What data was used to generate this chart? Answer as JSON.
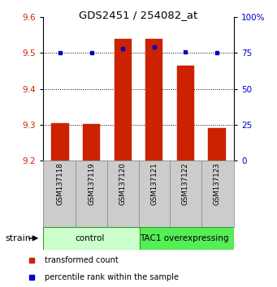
{
  "title": "GDS2451 / 254082_at",
  "samples": [
    "GSM137118",
    "GSM137119",
    "GSM137120",
    "GSM137121",
    "GSM137122",
    "GSM137123"
  ],
  "red_values": [
    9.305,
    9.302,
    9.54,
    9.54,
    9.465,
    9.29
  ],
  "blue_values": [
    75,
    75,
    78,
    79,
    76,
    75
  ],
  "ylim_left": [
    9.2,
    9.6
  ],
  "ylim_right": [
    0,
    100
  ],
  "yticks_left": [
    9.2,
    9.3,
    9.4,
    9.5,
    9.6
  ],
  "yticks_right": [
    0,
    25,
    50,
    75,
    100
  ],
  "bar_bottom": 9.2,
  "bar_color": "#cc2200",
  "dot_color": "#0000cc",
  "group_labels": [
    "control",
    "TAC1 overexpressing"
  ],
  "group_colors": [
    "#ccffcc",
    "#55ee55"
  ],
  "strain_label": "strain",
  "legend_red": "transformed count",
  "legend_blue": "percentile rank within the sample"
}
